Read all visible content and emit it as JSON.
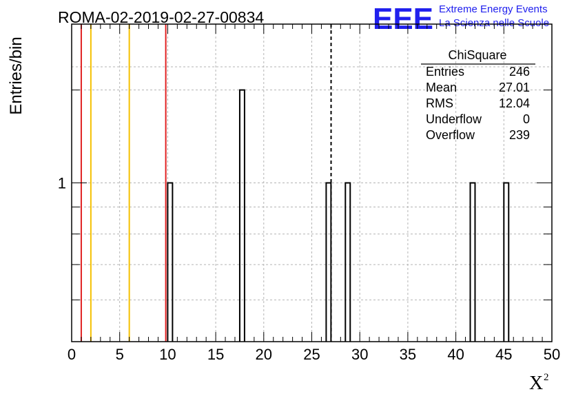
{
  "logo": {
    "letters": "EEE",
    "line1": "Extreme Energy Events",
    "line2": "La Scienza nelle Scuole",
    "color": "#2020ee"
  },
  "stats_box": {
    "title": "ChiSquare",
    "rows": [
      {
        "label": "Entries",
        "value": "246"
      },
      {
        "label": "Mean",
        "value": "27.01"
      },
      {
        "label": "RMS",
        "value": "12.04"
      },
      {
        "label": "Underflow",
        "value": "0"
      },
      {
        "label": "Overflow",
        "value": "239"
      }
    ]
  },
  "chart_data": {
    "type": "bar",
    "title": "ROMA-02-2019-02-27-00834",
    "xlabel": "X",
    "xlabel_superscript": "2",
    "ylabel": "Entries/bin",
    "xlim": [
      0,
      50
    ],
    "ylim": [
      0.5,
      2
    ],
    "log_y": true,
    "grid": true,
    "x_ticks": [
      "0",
      "5",
      "10",
      "15",
      "20",
      "25",
      "30",
      "35",
      "40",
      "45",
      "50"
    ],
    "y_tick_labels": [
      "1"
    ],
    "bin_width": 0.5,
    "bins": [
      {
        "x": 10.0,
        "value": 1
      },
      {
        "x": 17.5,
        "value": 1.5
      },
      {
        "x": 26.5,
        "value": 1
      },
      {
        "x": 28.5,
        "value": 1
      },
      {
        "x": 41.5,
        "value": 1
      },
      {
        "x": 45.0,
        "value": 1
      }
    ],
    "vertical_lines": [
      {
        "x": 1.0,
        "color": "#e02020",
        "style": "solid"
      },
      {
        "x": 2.0,
        "color": "#f5c000",
        "style": "solid"
      },
      {
        "x": 6.0,
        "color": "#f5c000",
        "style": "solid"
      },
      {
        "x": 9.8,
        "color": "#e02020",
        "style": "solid"
      },
      {
        "x": 27.01,
        "color": "#000000",
        "style": "dashed"
      }
    ]
  }
}
